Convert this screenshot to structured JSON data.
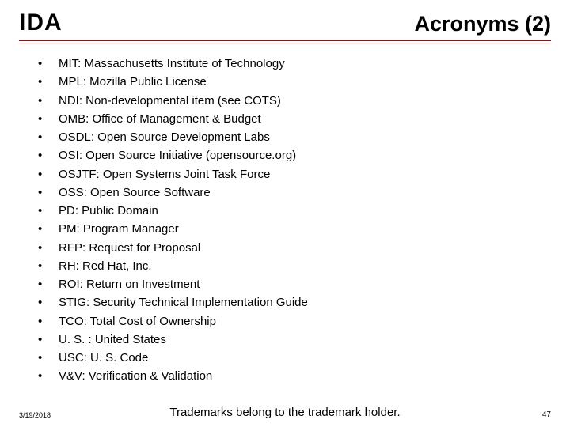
{
  "header": {
    "logo_text": "IDA",
    "title": "Acronyms (2)"
  },
  "colors": {
    "rule": "#7a1b1b",
    "text": "#000000",
    "background": "#ffffff"
  },
  "typography": {
    "logo_fontsize_pt": 22,
    "title_fontsize_pt": 20,
    "body_fontsize_pt": 11,
    "footer_small_fontsize_pt": 7,
    "footer_note_fontsize_pt": 11
  },
  "acronyms": [
    "MIT: Massachusetts Institute of Technology",
    "MPL: Mozilla Public License",
    "NDI: Non-developmental item (see COTS)",
    "OMB: Office of Management & Budget",
    "OSDL: Open Source Development Labs",
    "OSI: Open Source Initiative (opensource.org)",
    "OSJTF: Open Systems Joint Task Force",
    "OSS: Open Source Software",
    "PD: Public Domain",
    "PM: Program Manager",
    "RFP: Request for Proposal",
    "RH: Red Hat, Inc.",
    "ROI: Return on Investment",
    "STIG: Security Technical Implementation Guide",
    "TCO: Total Cost of Ownership",
    "U. S. : United States",
    "USC: U. S. Code",
    "V&V: Verification & Validation"
  ],
  "footer": {
    "date": "3/19/2018",
    "note": "Trademarks belong to the trademark holder.",
    "page_number": "47"
  }
}
